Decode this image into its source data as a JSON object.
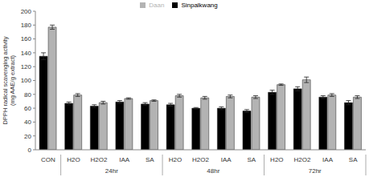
{
  "chart_data": {
    "type": "bar",
    "y_label": "DPPH radical scavenging activity (mg AAE/g extract)",
    "categories": [
      "CON",
      "H2O",
      "H2O2",
      "IAA",
      "SA",
      "H2O",
      "H2O2",
      "IAA",
      "SA",
      "H2O",
      "H2O2",
      "IAA",
      "SA"
    ],
    "category_groups": [
      null,
      "24hr",
      "24hr",
      "24hr",
      "24hr",
      "48hr",
      "48hr",
      "48hr",
      "48hr",
      "72hr",
      "72hr",
      "72hr",
      "72hr"
    ],
    "series": [
      {
        "name": "Sinpalkwang",
        "color": "#000000",
        "values": [
          135,
          67,
          63,
          69,
          66,
          65,
          60,
          60,
          56,
          83,
          88,
          76,
          68
        ],
        "errors": [
          5,
          2,
          2,
          2,
          2,
          2,
          1,
          2,
          2,
          3,
          3,
          2,
          3
        ]
      },
      {
        "name": "Daan",
        "color": "#b3b3b3",
        "values": [
          177,
          79,
          68,
          74,
          71,
          78,
          75,
          77,
          76,
          94,
          101,
          79,
          76
        ],
        "errors": [
          3,
          2,
          2,
          1,
          1,
          2,
          2,
          2,
          2,
          1,
          4,
          2,
          2
        ]
      }
    ],
    "ylim": [
      0,
      200
    ],
    "yticks": [
      0,
      20,
      40,
      60,
      80,
      100,
      120,
      140,
      160,
      180,
      200
    ],
    "grid": false,
    "legend": "top"
  }
}
